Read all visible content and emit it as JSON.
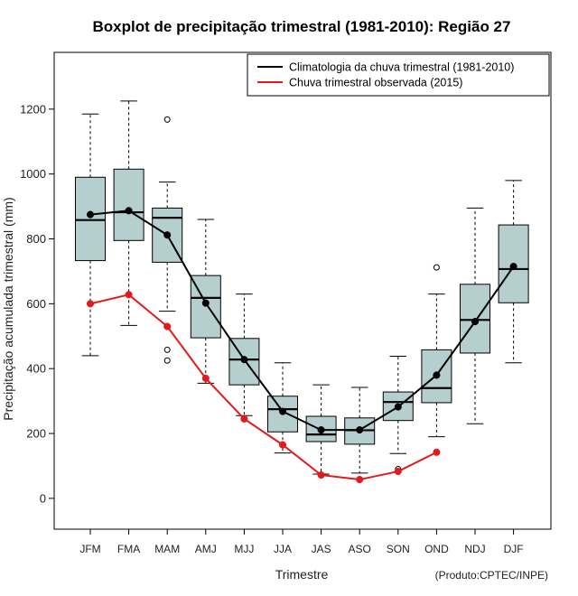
{
  "chart_data": {
    "type": "boxplot",
    "title": "Boxplot de precipitação trimestral (1981-2010): Região 27",
    "xlabel": "Trimestre",
    "ylabel": "Precipitação acumulada trimestral (mm)",
    "source": "(Produto:CPTEC/INPE)",
    "ylim": [
      -95,
      1375
    ],
    "yticks": [
      0,
      200,
      400,
      600,
      800,
      1000,
      1200
    ],
    "categories": [
      "JFM",
      "FMA",
      "MAM",
      "AMJ",
      "MJJ",
      "JJA",
      "JAS",
      "ASO",
      "SON",
      "OND",
      "NDJ",
      "DJF"
    ],
    "box_fill": "#b5cece",
    "boxes": [
      {
        "category": "JFM",
        "whisker_low": 440,
        "q1": 733,
        "median": 858,
        "q3": 990,
        "whisker_high": 1185,
        "outliers": []
      },
      {
        "category": "FMA",
        "whisker_low": 533,
        "q1": 795,
        "median": 882,
        "q3": 1015,
        "whisker_high": 1225,
        "outliers": []
      },
      {
        "category": "MAM",
        "whisker_low": 577,
        "q1": 728,
        "median": 865,
        "q3": 895,
        "whisker_high": 975,
        "outliers": [
          1168,
          458,
          425
        ]
      },
      {
        "category": "AMJ",
        "whisker_low": 355,
        "q1": 495,
        "median": 618,
        "q3": 687,
        "whisker_high": 860,
        "outliers": []
      },
      {
        "category": "MJJ",
        "whisker_low": 255,
        "q1": 350,
        "median": 428,
        "q3": 493,
        "whisker_high": 630,
        "outliers": []
      },
      {
        "category": "JJA",
        "whisker_low": 140,
        "q1": 205,
        "median": 275,
        "q3": 315,
        "whisker_high": 418,
        "outliers": []
      },
      {
        "category": "JAS",
        "whisker_low": 75,
        "q1": 175,
        "median": 197,
        "q3": 253,
        "whisker_high": 350,
        "outliers": []
      },
      {
        "category": "ASO",
        "whisker_low": 78,
        "q1": 167,
        "median": 210,
        "q3": 248,
        "whisker_high": 342,
        "outliers": []
      },
      {
        "category": "SON",
        "whisker_low": 138,
        "q1": 240,
        "median": 297,
        "q3": 328,
        "whisker_high": 438,
        "outliers": [
          90
        ]
      },
      {
        "category": "OND",
        "whisker_low": 190,
        "q1": 295,
        "median": 340,
        "q3": 458,
        "whisker_high": 630,
        "outliers": [
          712
        ]
      },
      {
        "category": "NDJ",
        "whisker_low": 230,
        "q1": 448,
        "median": 550,
        "q3": 660,
        "whisker_high": 895,
        "outliers": []
      },
      {
        "category": "DJF",
        "whisker_low": 418,
        "q1": 603,
        "median": 707,
        "q3": 843,
        "whisker_high": 980,
        "outliers": []
      }
    ],
    "series": [
      {
        "name": "Climatologia da chuva trimestral (1981-2010)",
        "color": "#000000",
        "values": [
          875,
          887,
          812,
          602,
          428,
          268,
          211,
          211,
          282,
          380,
          545,
          715
        ]
      },
      {
        "name": "Chuva trimestral observada (2015)",
        "color": "#e31a1c",
        "values": [
          600,
          628,
          530,
          370,
          245,
          165,
          72,
          58,
          83,
          142,
          null,
          null
        ]
      }
    ],
    "legend_position": "top-right"
  }
}
